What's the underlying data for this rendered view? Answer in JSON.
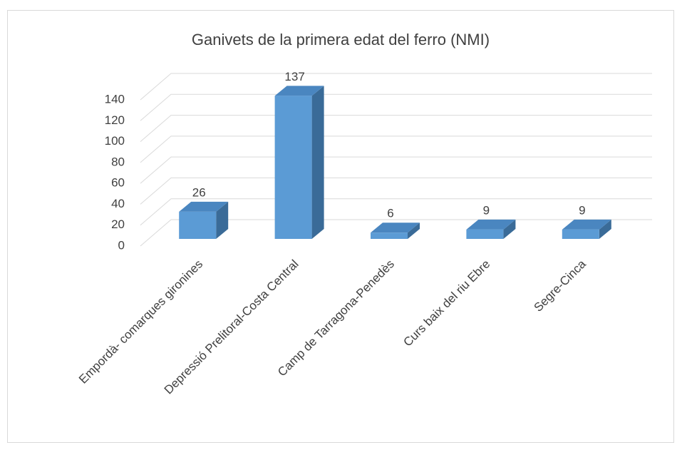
{
  "chart_data": {
    "type": "bar3d",
    "title": "Ganivets de la primera edat del ferro (NMI)",
    "categories": [
      "Empordà- comarques gironines",
      "Depressió Prelitoral-Costa Central",
      "Camp de Tarragona-Penedès",
      "Curs baix del riu Ebre",
      "Segre-Cinca"
    ],
    "values": [
      26,
      137,
      6,
      9,
      9
    ],
    "color": "#5b9bd5",
    "ylim": [
      0,
      140
    ],
    "yticks": [
      0,
      20,
      40,
      60,
      80,
      100,
      120,
      140
    ],
    "grid": true
  }
}
